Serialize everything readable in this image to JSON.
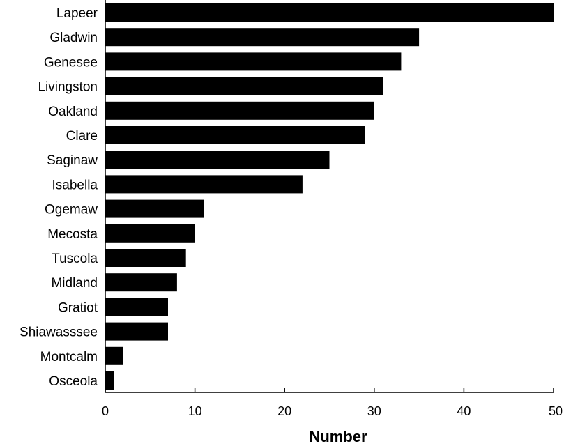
{
  "chart_data": {
    "type": "bar",
    "orientation": "horizontal",
    "categories": [
      "Lapeer",
      "Gladwin",
      "Genesee",
      "Livingston",
      "Oakland",
      "Clare",
      "Saginaw",
      "Isabella",
      "Ogemaw",
      "Mecosta",
      "Tuscola",
      "Midland",
      "Gratiot",
      "Shiawasssee",
      "Montcalm",
      "Osceola"
    ],
    "values": [
      50,
      35,
      33,
      31,
      30,
      29,
      25,
      22,
      11,
      10,
      9,
      8,
      7,
      7,
      2,
      1
    ],
    "xlabel": "Number",
    "ylabel": "",
    "xlim": [
      0,
      50
    ],
    "x_ticks": [
      "0",
      "10",
      "20",
      "30",
      "40",
      "50"
    ],
    "bar_color": "#000000",
    "grid": false,
    "legend": "none"
  }
}
